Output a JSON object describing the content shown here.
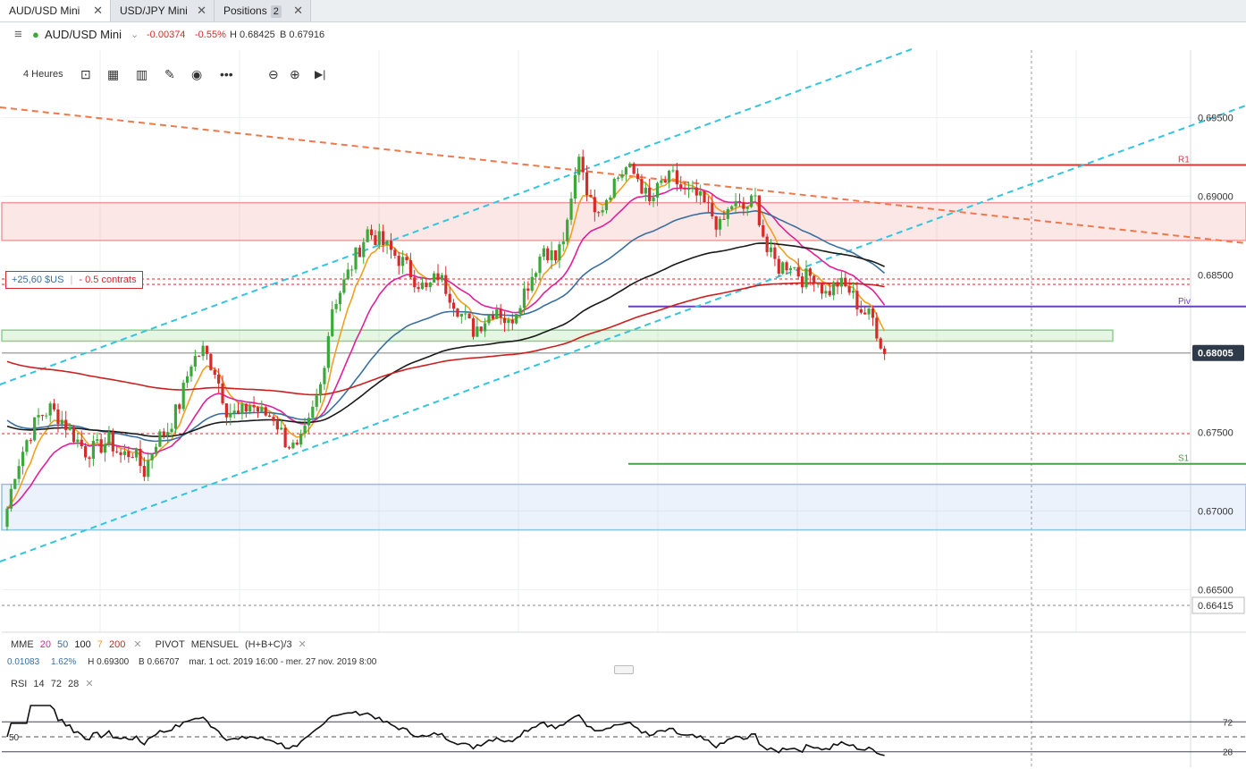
{
  "tabs": [
    {
      "label": "AUD/USD Mini",
      "active": true
    },
    {
      "label": "USD/JPY Mini",
      "active": false
    },
    {
      "label": "Positions",
      "badge": "2",
      "active": false
    }
  ],
  "instrument": {
    "name": "AUD/USD Mini",
    "change": "-0.00374",
    "change_pct": "-0.55%",
    "high": "H 0.68425",
    "bid": "B 0.67916"
  },
  "toolbar": {
    "timeframe": "4 Heures"
  },
  "position_label": {
    "pnl": "+25,60 $US",
    "size": "- 0.5 contrats"
  },
  "indicators": {
    "mme_label": "MME",
    "mme_periods": [
      "20",
      "50",
      "100",
      "7",
      "200"
    ],
    "pivot_label": "PIVOT",
    "pivot_type": "MENSUEL",
    "pivot_formula": "(H+B+C)/3",
    "range_value": "0.01083",
    "range_pct": "1.62%",
    "range_high": "H 0.69300",
    "range_low": "B 0.66707",
    "date_range": "mar. 1 oct. 2019 16:00 - mer. 27 nov. 2019 8:00",
    "rsi_label": "RSI",
    "rsi_params": [
      "14",
      "72",
      "28"
    ]
  },
  "colors": {
    "up": "#3ca83a",
    "down": "#d62b2b",
    "ema7": "#f0a020",
    "ema20": "#e0209a",
    "ema50": "#3a6fa0",
    "ema100": "#1a1a1a",
    "ema200": "#cc1f1f",
    "channel": "#33c4e0",
    "trend": "#f0784a",
    "r1": "#d43a3a",
    "piv": "#6a3fc0",
    "s1": "#4aa048"
  },
  "chart_data": {
    "type": "candlestick",
    "y_ticks": [
      "0.69500",
      "0.69000",
      "0.68500",
      "0.67500",
      "0.67000",
      "0.66500"
    ],
    "current_price": "0.68005",
    "low_marker": "0.66415",
    "ylim": [
      0.6623,
      0.6993
    ],
    "pivot_levels": [
      {
        "label": "R1",
        "value": 0.692
      },
      {
        "label": "Piv",
        "value": 0.683
      },
      {
        "label": "S1",
        "value": 0.673
      }
    ],
    "zones": [
      {
        "kind": "resistance",
        "from": 0.6872,
        "to": 0.6896
      },
      {
        "kind": "support",
        "from": 0.6688,
        "to": 0.6717
      },
      {
        "kind": "highlight",
        "from": 0.6808,
        "to": 0.6815
      }
    ],
    "ohlc_path": [
      0.669,
      0.6725,
      0.6745,
      0.676,
      0.6765,
      0.6758,
      0.6748,
      0.6738,
      0.674,
      0.6745,
      0.6735,
      0.6738,
      0.6725,
      0.6745,
      0.6752,
      0.6768,
      0.6795,
      0.6802,
      0.679,
      0.6765,
      0.676,
      0.6768,
      0.6762,
      0.676,
      0.6745,
      0.6738,
      0.6755,
      0.678,
      0.683,
      0.6845,
      0.6862,
      0.6878,
      0.6872,
      0.6865,
      0.6858,
      0.6848,
      0.684,
      0.685,
      0.6838,
      0.6825,
      0.6815,
      0.6822,
      0.683,
      0.6818,
      0.6835,
      0.685,
      0.6868,
      0.686,
      0.688,
      0.6928,
      0.6895,
      0.6895,
      0.691,
      0.6918,
      0.6912,
      0.6895,
      0.6908,
      0.6912,
      0.6902,
      0.69,
      0.6892,
      0.688,
      0.6895,
      0.6892,
      0.6898,
      0.6865,
      0.6855,
      0.6858,
      0.6848,
      0.685,
      0.6838,
      0.6845,
      0.684,
      0.6828,
      0.6822,
      0.68
    ],
    "rsi_levels": [
      72,
      50,
      28
    ]
  }
}
